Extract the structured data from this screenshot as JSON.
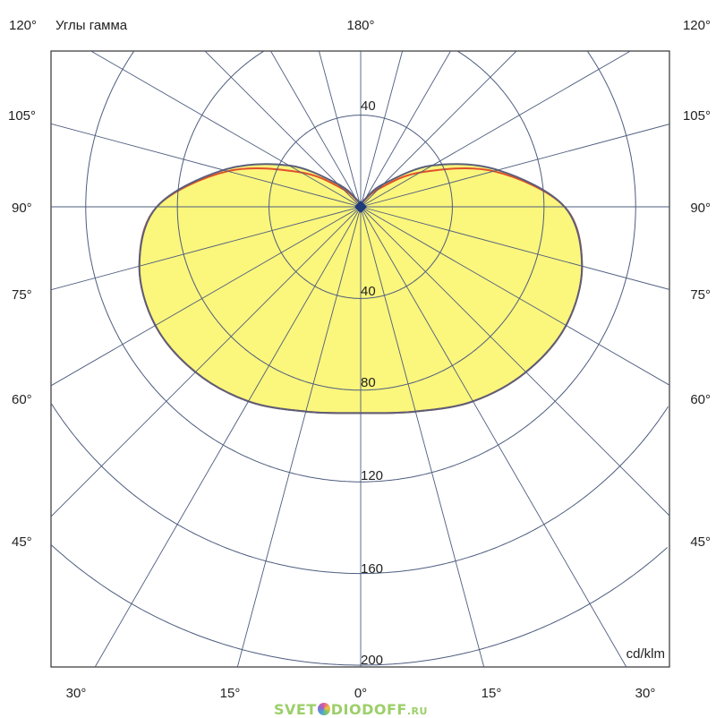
{
  "chart_data": {
    "type": "polar",
    "title": "Углы гамма",
    "unit": "cd/klm",
    "radial_ticks": [
      40,
      80,
      120,
      160,
      200
    ],
    "radial_tick_labels_up": [
      "40"
    ],
    "radial_tick_labels_down": [
      "40",
      "80",
      "120",
      "160",
      "200"
    ],
    "rmax": 200,
    "angle_step_deg": 15,
    "angle_labels": {
      "top_left": "120°",
      "top_center": "180°",
      "top_right": "120°",
      "left": [
        "105°",
        "90°",
        "75°",
        "60°",
        "45°"
      ],
      "right": [
        "105°",
        "90°",
        "75°",
        "60°",
        "45°"
      ],
      "bottom": [
        "30°",
        "15°",
        "0°",
        "15°",
        "30°"
      ]
    },
    "gamma_deg": [
      0,
      15,
      30,
      45,
      60,
      75,
      90,
      105,
      120,
      135,
      150,
      165,
      180
    ],
    "series": [
      {
        "values": [
          90,
          92.5,
          98,
          102,
          103.5,
          100,
          89,
          62,
          36,
          14,
          4,
          1,
          0
        ],
        "color": "#5a5f7a",
        "fill": "#fbf67c"
      },
      {
        "values": [
          90,
          92.5,
          98,
          102,
          103.5,
          100,
          89,
          60,
          30,
          11,
          3,
          1,
          0
        ],
        "color": "#e0502a"
      }
    ],
    "grid": true,
    "grid_color": "#4d5c7e"
  },
  "logo": {
    "text": "SVET",
    "text2": "DIODOFF",
    "suffix": ".RU"
  }
}
